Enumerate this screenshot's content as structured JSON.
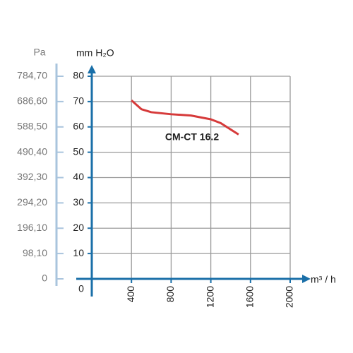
{
  "chart_data": {
    "type": "line",
    "y_label": "mm H₂O",
    "y2_label": "Pa",
    "x_label": "m³ / h",
    "xlim": [
      0,
      2000
    ],
    "xticks": [
      400,
      800,
      1200,
      1600,
      2000
    ],
    "ylim": [
      0,
      80
    ],
    "yticks": [
      0,
      10,
      20,
      30,
      40,
      50,
      60,
      70,
      80
    ],
    "y2lim": [
      0,
      784.7
    ],
    "y2ticks": [
      {
        "value": 0,
        "label": "0"
      },
      {
        "value": 98.1,
        "label": "98,10"
      },
      {
        "value": 196.1,
        "label": "196,10"
      },
      {
        "value": 294.2,
        "label": "294,20"
      },
      {
        "value": 392.3,
        "label": "392,30"
      },
      {
        "value": 490.4,
        "label": "490,40"
      },
      {
        "value": 588.5,
        "label": "588,50"
      },
      {
        "value": 686.6,
        "label": "686,60"
      },
      {
        "value": 784.7,
        "label": "784,70"
      }
    ],
    "grid": true,
    "series": [
      {
        "name": "CM-CT 16.2",
        "color": "#d63a3a",
        "x": [
          400,
          500,
          600,
          800,
          1000,
          1200,
          1300,
          1400,
          1480
        ],
        "values": [
          70.5,
          67,
          65.8,
          65,
          64.5,
          63,
          61.5,
          59,
          57
        ]
      }
    ]
  }
}
